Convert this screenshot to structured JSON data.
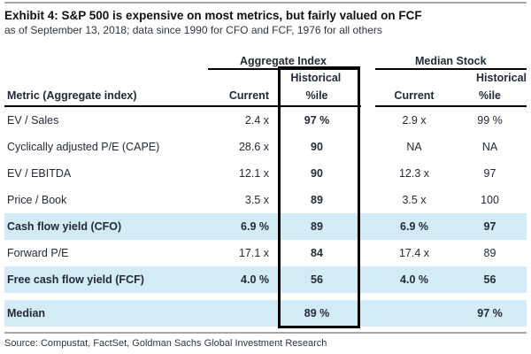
{
  "chart_data": {
    "type": "table",
    "title": "Exhibit 4: S&P 500 is expensive on most metrics, but fairly valued on FCF",
    "subtitle": "as of September 13, 2018; data since 1990 for CFO and FCF, 1976 for all others",
    "source": "Source: Compustat, FactSet, Goldman Sachs Global Investment Research",
    "group_headers": [
      "Aggregate Index",
      "Median Stock"
    ],
    "historical_label": "Historical",
    "metric_header": "Metric (Aggregate index)",
    "current_header": "Current",
    "pctile_header": "%ile",
    "rows": [
      {
        "metric": "EV / Sales",
        "agg_current": "2.4 x",
        "agg_pctile": "97 %",
        "med_current": "2.9 x",
        "med_pctile": "99 %",
        "highlight": false
      },
      {
        "metric": "Cyclically adjusted P/E (CAPE)",
        "agg_current": "28.6 x",
        "agg_pctile": "90",
        "med_current": "NA",
        "med_pctile": "NA",
        "highlight": false
      },
      {
        "metric": "EV / EBITDA",
        "agg_current": "12.1 x",
        "agg_pctile": "90",
        "med_current": "12.3 x",
        "med_pctile": "97",
        "highlight": false
      },
      {
        "metric": "Price / Book",
        "agg_current": "3.5 x",
        "agg_pctile": "89",
        "med_current": "3.5 x",
        "med_pctile": "100",
        "highlight": false
      },
      {
        "metric": "Cash flow yield (CFO)",
        "agg_current": "6.9 %",
        "agg_pctile": "89",
        "med_current": "6.9 %",
        "med_pctile": "97",
        "highlight": true
      },
      {
        "metric": "Forward P/E",
        "agg_current": "17.1 x",
        "agg_pctile": "84",
        "med_current": "17.4 x",
        "med_pctile": "89",
        "highlight": false
      },
      {
        "metric": "Free cash flow yield (FCF)",
        "agg_current": "4.0 %",
        "agg_pctile": "56",
        "med_current": "4.0 %",
        "med_pctile": "56",
        "highlight": true
      },
      {
        "metric": "Median",
        "agg_current": "",
        "agg_pctile": "89 %",
        "med_current": "",
        "med_pctile": "97 %",
        "highlight": true
      }
    ]
  },
  "colors": {
    "highlight_bg": "#d3eaf7",
    "text": "#232b36",
    "rule_gray": "#a6a6a6",
    "box_black": "#000000"
  }
}
